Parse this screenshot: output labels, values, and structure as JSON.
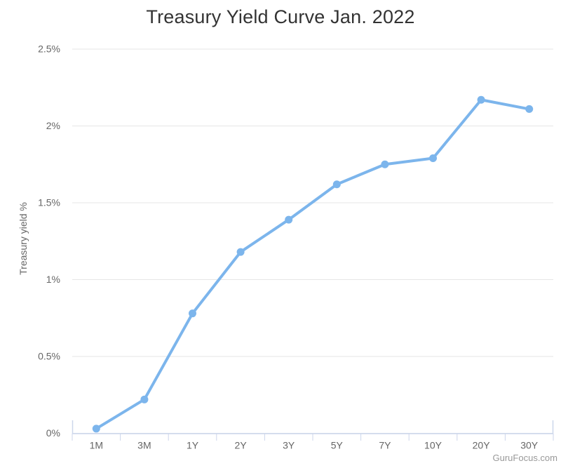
{
  "header": {
    "title": "Treasury Yield Curve Jan. 2022"
  },
  "credit": {
    "label": "GuruFocus.com"
  },
  "colors": {
    "line": "#7cb5ec",
    "marker": "#7cb5ec",
    "grid": "#e6e6e6",
    "axis_line": "#ccd6eb",
    "labels": "#666666",
    "title": "#333333",
    "credit": "#999999",
    "background": "#ffffff"
  },
  "chart_data": {
    "type": "line",
    "title": "Treasury Yield Curve Jan. 2022",
    "categories": [
      "1M",
      "3M",
      "1Y",
      "2Y",
      "3Y",
      "5Y",
      "7Y",
      "10Y",
      "20Y",
      "30Y"
    ],
    "values": [
      0.03,
      0.22,
      0.78,
      1.18,
      1.39,
      1.62,
      1.75,
      1.79,
      2.17,
      2.11
    ],
    "xlabel": "",
    "ylabel": "Treasury yield %",
    "ylim": [
      0,
      2.5
    ],
    "yticks": {
      "values": [
        0,
        0.5,
        1,
        1.5,
        2,
        2.5
      ],
      "labels": [
        "0%",
        "0.5%",
        "1%",
        "1.5%",
        "2%",
        "2.5%"
      ]
    },
    "grid": true,
    "legend": false,
    "credit": "GuruFocus.com"
  }
}
